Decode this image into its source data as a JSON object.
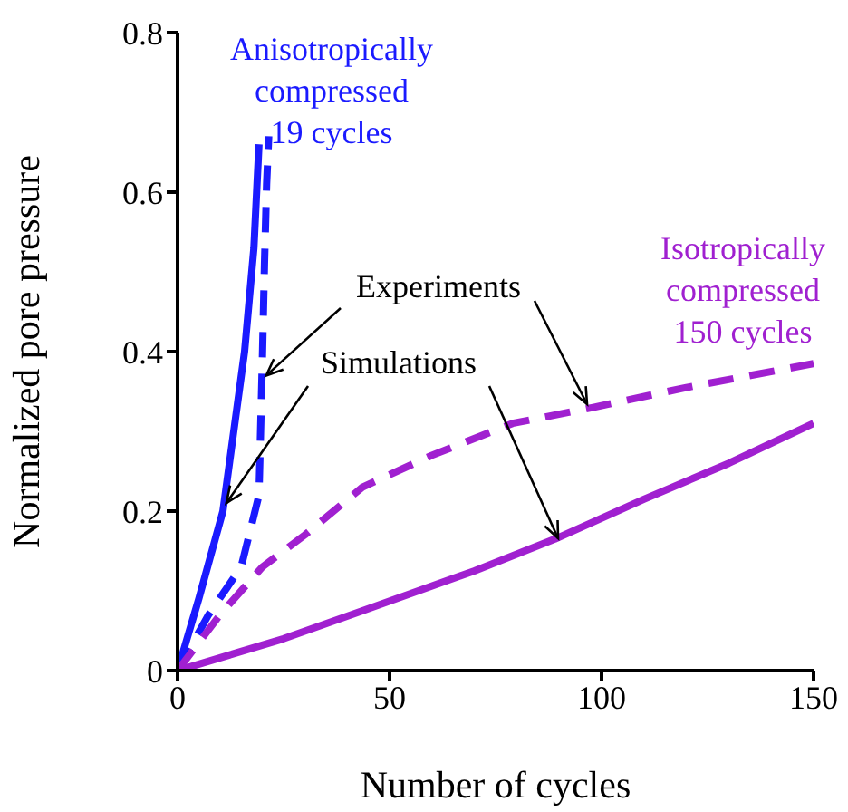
{
  "chart_data": {
    "type": "line",
    "xlabel": "Number of cycles",
    "ylabel": "Normalized pore pressure",
    "xlim": [
      0,
      150
    ],
    "xticks": [
      0,
      50,
      100,
      150
    ],
    "ylim": [
      0,
      0.8
    ],
    "yticks": [
      0,
      0.2,
      0.4,
      0.6,
      0.8
    ],
    "series": [
      {
        "color": "#1a1aff",
        "line_style": "solid",
        "x": [
          0,
          5,
          10.7,
          15.8,
          18,
          19.2
        ],
        "values": [
          0,
          0.09,
          0.2,
          0.4,
          0.53,
          0.66
        ]
      },
      {
        "color": "#1a1aff",
        "line_style": "dashed",
        "x": [
          0,
          7.3,
          15,
          19.2,
          20,
          20.5,
          21,
          21.5
        ],
        "values": [
          0,
          0.07,
          0.13,
          0.22,
          0.39,
          0.51,
          0.61,
          0.67
        ]
      },
      {
        "color": "#a020d0",
        "line_style": "solid",
        "x": [
          0,
          25,
          43.6,
          70,
          89,
          110,
          130,
          150
        ],
        "values": [
          0,
          0.04,
          0.075,
          0.125,
          0.165,
          0.215,
          0.26,
          0.31
        ]
      },
      {
        "color": "#a020d0",
        "line_style": "dashed",
        "x": [
          0,
          10,
          20,
          30,
          43.6,
          60,
          79,
          98,
          120,
          150
        ],
        "values": [
          0,
          0.07,
          0.13,
          0.17,
          0.23,
          0.27,
          0.31,
          0.33,
          0.355,
          0.385
        ]
      }
    ],
    "annotations": [
      "Anisotropically\ncompressed\n19 cycles",
      "Isotropically\ncompressed\n150 cycles",
      {
        "text": "Experiments",
        "x": 20.9,
        "y": 0.37
      },
      {
        "text": "Simulations",
        "x": 11.5,
        "y": 0.21
      }
    ]
  }
}
